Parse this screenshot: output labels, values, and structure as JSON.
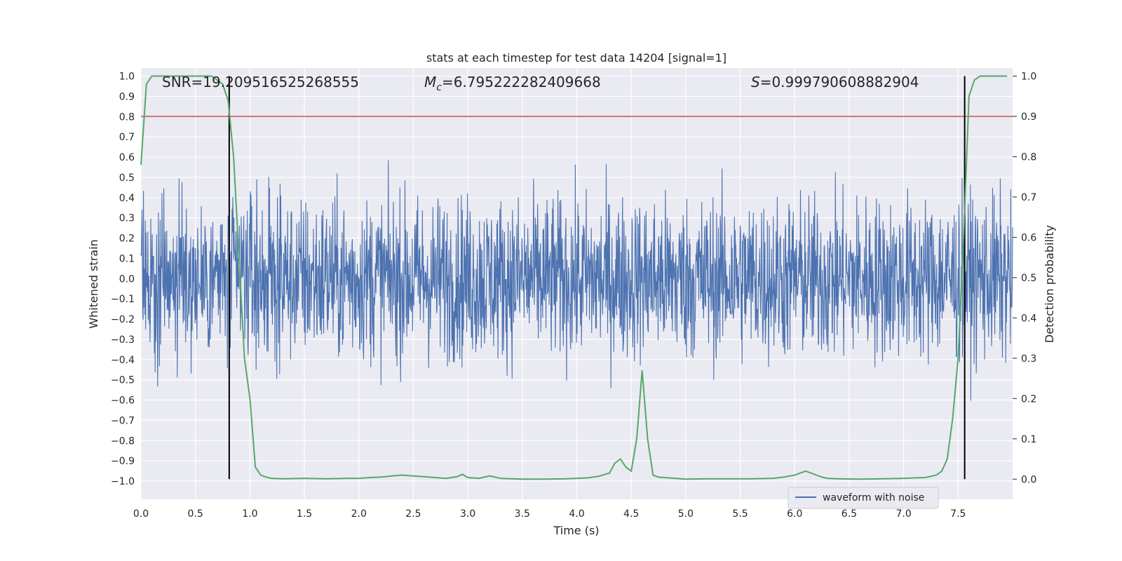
{
  "chart_data": {
    "type": "line",
    "title": "stats at each timestep for test data 14204 [signal=1]",
    "xlabel": "Time (s)",
    "ylabel_left": "Whitened strain",
    "ylabel_right": "Detection probability",
    "xlim": [
      0.0,
      8.0
    ],
    "ylim_left": [
      -1.09,
      1.04
    ],
    "ylim_right": [
      -0.05,
      1.02
    ],
    "x_ticks": [
      0.0,
      0.5,
      1.0,
      1.5,
      2.0,
      2.5,
      3.0,
      3.5,
      4.0,
      4.5,
      5.0,
      5.5,
      6.0,
      6.5,
      7.0,
      7.5
    ],
    "x_tick_labels": [
      "0.0",
      "0.5",
      "1.0",
      "1.5",
      "2.0",
      "2.5",
      "3.0",
      "3.5",
      "4.0",
      "4.5",
      "5.0",
      "5.5",
      "6.0",
      "6.5",
      "7.0",
      "7.5"
    ],
    "y_left_ticks": [
      1.0,
      0.9,
      0.8,
      0.7,
      0.6,
      0.5,
      0.4,
      0.3,
      0.2,
      0.1,
      0.0,
      -0.1,
      -0.2,
      -0.3,
      -0.4,
      -0.5,
      -0.6,
      -0.7,
      -0.8,
      -0.9,
      -1.0
    ],
    "y_left_tick_labels": [
      "1.0",
      "0.9",
      "0.8",
      "0.7",
      "0.6",
      "0.5",
      "0.4",
      "0.3",
      "0.2",
      "0.1",
      "0.0",
      "−0.1",
      "−0.2",
      "−0.3",
      "−0.4",
      "−0.5",
      "−0.6",
      "−0.7",
      "−0.8",
      "−0.9",
      "−1.0"
    ],
    "y_right_ticks": [
      1.0,
      0.9,
      0.8,
      0.7,
      0.6,
      0.5,
      0.4,
      0.3,
      0.2,
      0.1,
      0.0
    ],
    "y_right_tick_labels": [
      "1.0",
      "0.9",
      "0.8",
      "0.7",
      "0.6",
      "0.5",
      "0.4",
      "0.3",
      "0.2",
      "0.1",
      "0.0"
    ],
    "grid": true,
    "annotations": {
      "snr": "SNR=19.209516525268555",
      "mc": "=6.795222282409668",
      "mc_symbol": "M",
      "mc_sub": "c",
      "s": "=0.999790608882904",
      "s_symbol": "S"
    },
    "vertical_lines_x": [
      0.81,
      7.56
    ],
    "threshold_probability": 0.9,
    "waveform": {
      "name": "waveform with noise",
      "color": "#4c72b0",
      "description_range": [
        -1.0,
        0.7
      ],
      "x_start": 0.0,
      "x_end": 8.0
    },
    "probability_series": {
      "color": "#55a868",
      "x": [
        0.0,
        0.05,
        0.1,
        0.2,
        0.3,
        0.4,
        0.5,
        0.6,
        0.65,
        0.7,
        0.75,
        0.8,
        0.85,
        0.9,
        0.95,
        1.0,
        1.05,
        1.1,
        1.15,
        1.2,
        1.3,
        1.5,
        1.7,
        1.9,
        2.0,
        2.1,
        2.2,
        2.3,
        2.4,
        2.5,
        2.6,
        2.7,
        2.8,
        2.9,
        2.95,
        3.0,
        3.1,
        3.2,
        3.3,
        3.4,
        3.5,
        3.7,
        3.9,
        4.1,
        4.2,
        4.3,
        4.35,
        4.4,
        4.45,
        4.5,
        4.55,
        4.6,
        4.65,
        4.7,
        4.75,
        4.8,
        4.9,
        5.0,
        5.2,
        5.4,
        5.6,
        5.8,
        5.9,
        6.0,
        6.05,
        6.1,
        6.15,
        6.2,
        6.25,
        6.3,
        6.4,
        6.6,
        6.8,
        7.0,
        7.1,
        7.2,
        7.3,
        7.35,
        7.4,
        7.45,
        7.5,
        7.55,
        7.6,
        7.65,
        7.7,
        7.8,
        7.95
      ],
      "y": [
        0.78,
        0.98,
        1.0,
        1.0,
        1.0,
        1.0,
        1.0,
        1.0,
        1.0,
        0.99,
        0.98,
        0.94,
        0.8,
        0.55,
        0.3,
        0.2,
        0.03,
        0.01,
        0.005,
        0.002,
        0.001,
        0.002,
        0.001,
        0.002,
        0.002,
        0.004,
        0.005,
        0.008,
        0.01,
        0.008,
        0.006,
        0.004,
        0.002,
        0.006,
        0.012,
        0.004,
        0.002,
        0.008,
        0.002,
        0.001,
        0.0,
        0.0,
        0.001,
        0.003,
        0.007,
        0.015,
        0.04,
        0.05,
        0.03,
        0.02,
        0.1,
        0.27,
        0.1,
        0.01,
        0.005,
        0.004,
        0.002,
        0.0,
        0.001,
        0.001,
        0.001,
        0.002,
        0.005,
        0.01,
        0.015,
        0.02,
        0.015,
        0.01,
        0.005,
        0.002,
        0.001,
        0.0,
        0.001,
        0.002,
        0.003,
        0.004,
        0.01,
        0.02,
        0.05,
        0.15,
        0.3,
        0.6,
        0.95,
        0.99,
        1.0,
        1.0,
        1.0
      ]
    },
    "legend": {
      "placement": "lower-right",
      "entries": [
        "waveform with noise"
      ]
    }
  }
}
